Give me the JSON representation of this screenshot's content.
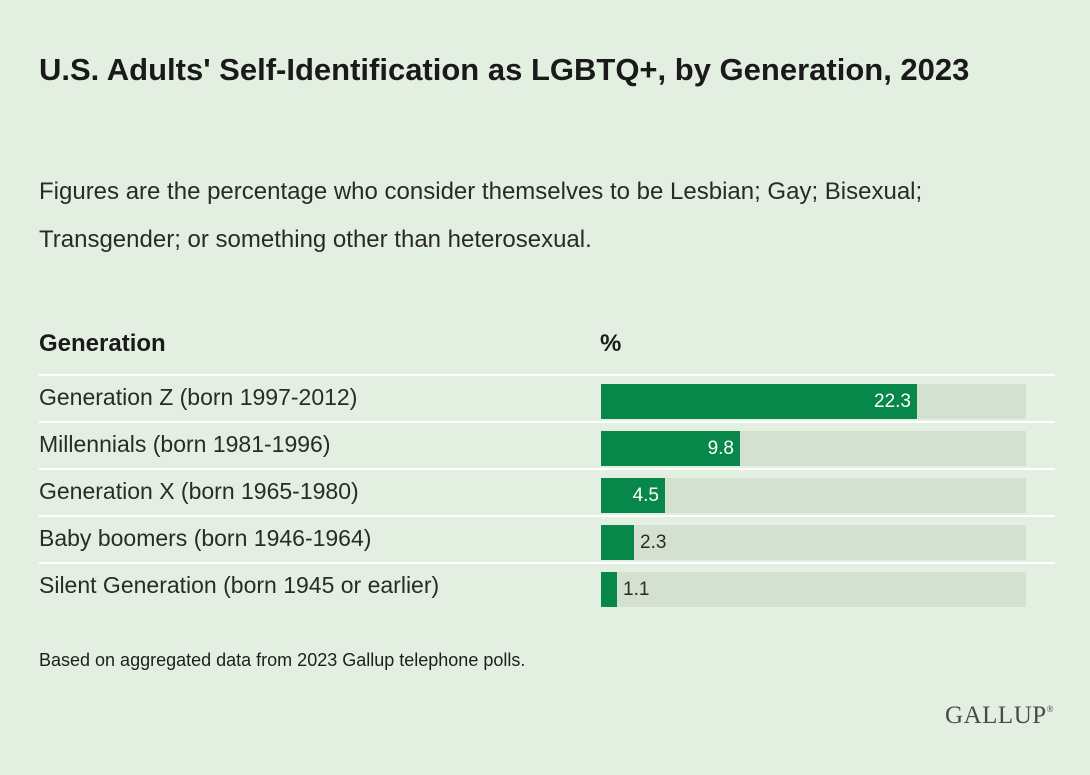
{
  "title": "U.S. Adults' Self-Identification as LGBTQ+, by Generation, 2023",
  "subtitle": "Figures are the percentage who consider themselves to be Lesbian; Gay; Bisexual; Transgender; or something other than heterosexual.",
  "columns": {
    "generation": "Generation",
    "percent": "%"
  },
  "footnote": "Based on aggregated data from 2023 Gallup telephone polls.",
  "brand": {
    "name": "GALLUP",
    "mark": "®"
  },
  "colors": {
    "background": "#e3f0e1",
    "bar": "#07874a",
    "track": "#d4e1d0"
  },
  "chart_data": {
    "type": "bar",
    "orientation": "horizontal",
    "categories": [
      "Generation Z (born 1997-2012)",
      "Millennials (born 1981-1996)",
      "Generation X (born 1965-1980)",
      "Baby boomers (born 1946-1964)",
      "Silent Generation (born 1945 or earlier)"
    ],
    "values": [
      22.3,
      9.8,
      4.5,
      2.3,
      1.1
    ],
    "value_labels": [
      "22.3",
      "9.8",
      "4.5",
      "2.3",
      "1.1"
    ],
    "xlim": [
      0,
      30
    ],
    "title": "U.S. Adults' Self-Identification as LGBTQ+, by Generation, 2023",
    "xlabel": "%",
    "ylabel": "Generation",
    "grid": false
  }
}
